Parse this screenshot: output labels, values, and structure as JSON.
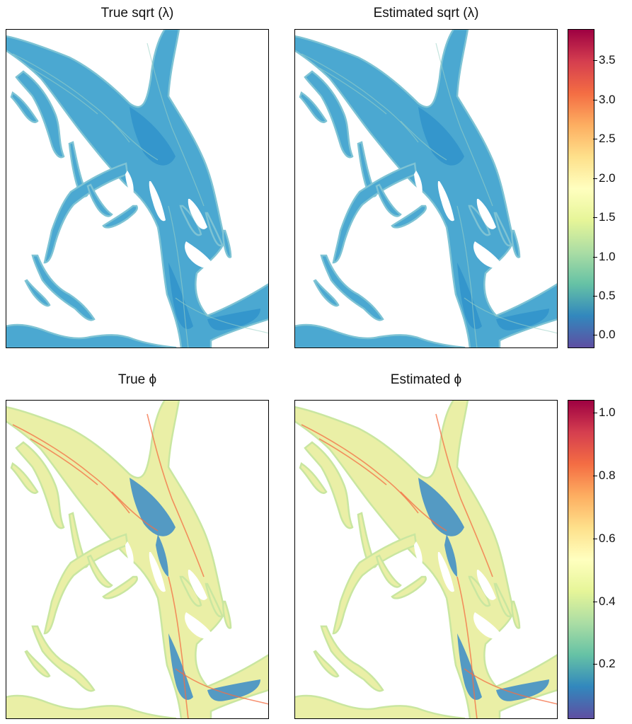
{
  "chart_data": [
    {
      "type": "heatmap",
      "title": "True sqrt (λ)",
      "colorbar": {
        "min": -0.15,
        "max": 3.9,
        "ticks": [
          0.0,
          0.5,
          1.0,
          1.5,
          2.0,
          2.5,
          3.0,
          3.5
        ],
        "tick_labels": [
          "0.0",
          "0.5",
          "1.0",
          "1.5",
          "2.0",
          "2.5",
          "3.0",
          "3.5"
        ],
        "palette": "Spectral-reversed"
      },
      "typical_value": 0.45
    },
    {
      "type": "heatmap",
      "title": "Estimated sqrt (λ)",
      "colorbar": {
        "min": -0.15,
        "max": 3.9,
        "ticks": [
          0.0,
          0.5,
          1.0,
          1.5,
          2.0,
          2.5,
          3.0,
          3.5
        ],
        "tick_labels": [
          "0.0",
          "0.5",
          "1.0",
          "1.5",
          "2.0",
          "2.5",
          "3.0",
          "3.5"
        ],
        "palette": "Spectral-reversed"
      },
      "typical_value": 0.45
    },
    {
      "type": "heatmap",
      "title": "True ϕ",
      "colorbar": {
        "min": 0.03,
        "max": 1.04,
        "ticks": [
          0.2,
          0.4,
          0.6,
          0.8,
          1.0
        ],
        "tick_labels": [
          "0.2",
          "0.4",
          "0.6",
          "0.8",
          "1.0"
        ],
        "palette": "Spectral-reversed"
      },
      "typical_value": 0.4
    },
    {
      "type": "heatmap",
      "title": "Estimated ϕ",
      "colorbar": {
        "min": 0.03,
        "max": 1.04,
        "ticks": [
          0.2,
          0.4,
          0.6,
          0.8,
          1.0
        ],
        "tick_labels": [
          "0.2",
          "0.4",
          "0.6",
          "0.8",
          "1.0"
        ],
        "palette": "Spectral-reversed"
      },
      "typical_value": 0.4
    }
  ],
  "colors": {
    "spectral_r": [
      "#5E4FA2",
      "#3288BD",
      "#66C2A5",
      "#ABDDA4",
      "#E6F598",
      "#FFFFBF",
      "#FEE08B",
      "#FDAE61",
      "#F46D43",
      "#D53E4F",
      "#9E0142"
    ],
    "water_low": "#2B8FCB",
    "water_mid": "#4BA8D1",
    "phi_high": "#EAEFA6",
    "phi_low": "#3A8BC8"
  }
}
